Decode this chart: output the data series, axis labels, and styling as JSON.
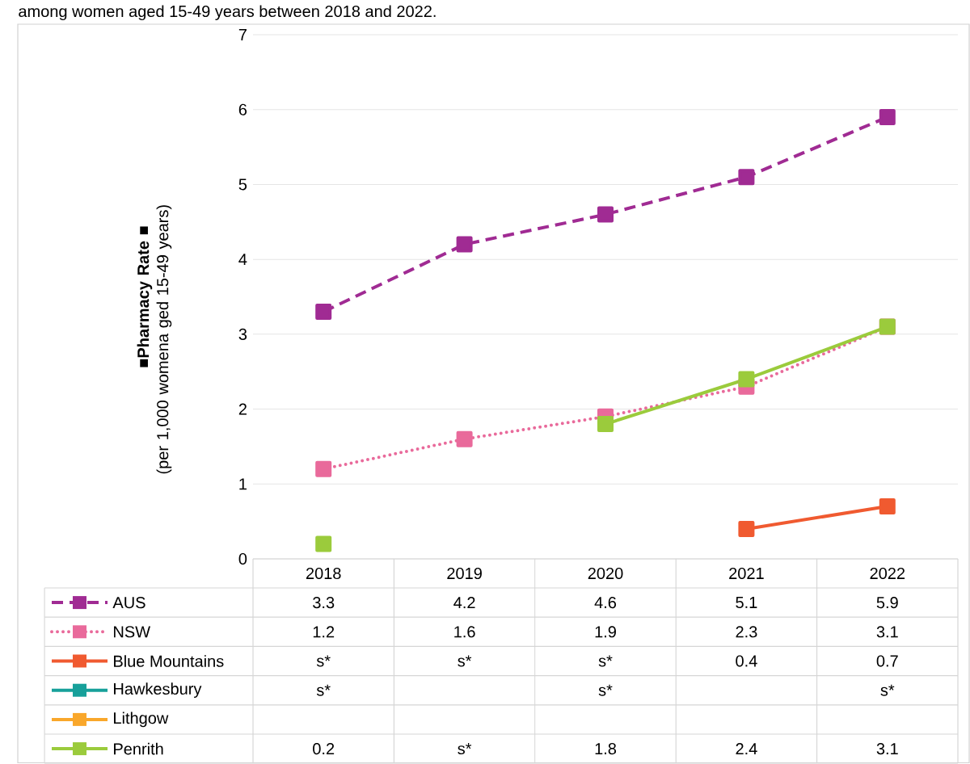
{
  "chart_data": {
    "type": "line",
    "title": "among women aged 15-49 years between 2018 and 2022.",
    "ylabel": "**■Pharmacy Rate** ■\n(per 1,000 womena ged 15-49 years)",
    "categories": [
      "2018",
      "2019",
      "2020",
      "2021",
      "2022"
    ],
    "ylim": [
      0,
      7
    ],
    "yticks": [
      0,
      1,
      2,
      3,
      4,
      5,
      6,
      7
    ],
    "grid": "y",
    "legend": "bottom",
    "marker": "square",
    "series": [
      {
        "name": "AUS",
        "color": "#a02b93",
        "line_style": "dashed",
        "values": [
          3.3,
          4.2,
          4.6,
          5.1,
          5.9
        ],
        "value_labels": [
          "3.3",
          "4.2",
          "4.6",
          "5.1",
          "5.9"
        ]
      },
      {
        "name": "NSW",
        "color": "#e96a9b",
        "line_style": "dotted",
        "values": [
          1.2,
          1.6,
          1.9,
          2.3,
          3.1
        ],
        "value_labels": [
          "1.2",
          "1.6",
          "1.9",
          "2.3",
          "3.1"
        ]
      },
      {
        "name": "Blue Mountains",
        "color": "#f05a30",
        "line_style": "solid",
        "values": [
          null,
          null,
          null,
          0.4,
          0.7
        ],
        "value_labels": [
          "s*",
          "s*",
          "s*",
          "0.4",
          "0.7"
        ]
      },
      {
        "name": "Hawkesbury",
        "color": "#17a09a",
        "line_style": "solid",
        "values": [
          null,
          null,
          null,
          null,
          null
        ],
        "value_labels": [
          "s*",
          null,
          "s*",
          null,
          "s*"
        ]
      },
      {
        "name": "Lithgow",
        "color": "#f9a72b",
        "line_style": "solid",
        "values": [
          null,
          null,
          null,
          null,
          null
        ]
      },
      {
        "name": "Penrith",
        "color": "#9bcb3c",
        "line_style": "solid",
        "values": [
          0.2,
          null,
          1.8,
          2.4,
          3.1
        ],
        "value_labels": [
          "0.2",
          "s*",
          "1.8",
          "2.4",
          "3.1"
        ]
      }
    ]
  }
}
